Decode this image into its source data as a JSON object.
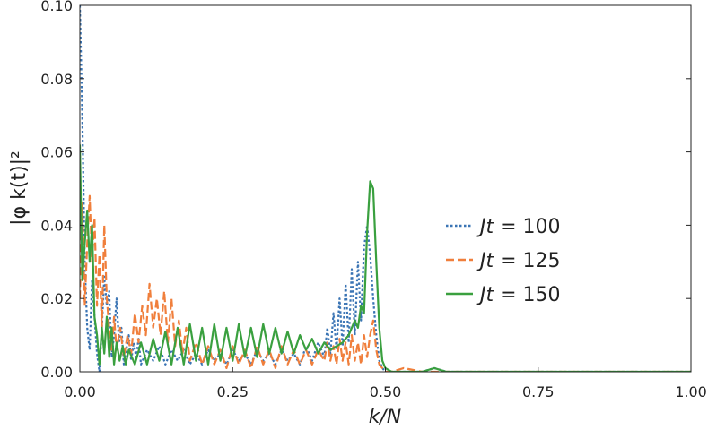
{
  "chart_data": {
    "type": "line",
    "xlabel": "k/N",
    "ylabel": "|φ k(t)|²",
    "xlim": [
      0,
      1
    ],
    "ylim": [
      0,
      0.1
    ],
    "xticks": [
      "0.00",
      "0.25",
      "0.50",
      "0.75",
      "1.00"
    ],
    "yticks": [
      "0.00",
      "0.02",
      "0.04",
      "0.06",
      "0.08",
      "0.10"
    ],
    "grid": false,
    "legend_position": "right",
    "series": [
      {
        "name": "Jt = 100",
        "color": "#3a74b4",
        "dash": "dotted",
        "x": [
          0.0,
          0.004,
          0.008,
          0.012,
          0.016,
          0.02,
          0.024,
          0.028,
          0.032,
          0.036,
          0.04,
          0.044,
          0.048,
          0.052,
          0.056,
          0.06,
          0.064,
          0.068,
          0.072,
          0.076,
          0.08,
          0.084,
          0.088,
          0.092,
          0.096,
          0.1,
          0.11,
          0.12,
          0.13,
          0.14,
          0.15,
          0.16,
          0.17,
          0.18,
          0.19,
          0.2,
          0.21,
          0.22,
          0.23,
          0.24,
          0.25,
          0.26,
          0.27,
          0.28,
          0.29,
          0.3,
          0.31,
          0.32,
          0.33,
          0.34,
          0.35,
          0.36,
          0.37,
          0.38,
          0.39,
          0.4,
          0.405,
          0.41,
          0.415,
          0.42,
          0.425,
          0.43,
          0.435,
          0.44,
          0.445,
          0.45,
          0.455,
          0.46,
          0.465,
          0.47,
          0.475,
          0.48,
          0.485,
          0.49,
          0.495,
          0.5,
          0.51,
          0.53,
          0.56,
          0.58,
          0.6,
          0.65,
          0.7,
          0.75,
          0.8,
          0.85,
          0.9,
          0.95,
          1.0
        ],
        "y": [
          0.1,
          0.07,
          0.03,
          0.012,
          0.006,
          0.025,
          0.015,
          0.005,
          0.0,
          0.012,
          0.026,
          0.018,
          0.022,
          0.004,
          0.01,
          0.02,
          0.008,
          0.012,
          0.002,
          0.006,
          0.01,
          0.003,
          0.008,
          0.004,
          0.009,
          0.002,
          0.006,
          0.003,
          0.007,
          0.002,
          0.006,
          0.003,
          0.006,
          0.002,
          0.005,
          0.002,
          0.006,
          0.003,
          0.005,
          0.002,
          0.006,
          0.003,
          0.005,
          0.002,
          0.006,
          0.003,
          0.005,
          0.002,
          0.006,
          0.003,
          0.005,
          0.002,
          0.007,
          0.003,
          0.008,
          0.004,
          0.012,
          0.005,
          0.016,
          0.006,
          0.02,
          0.007,
          0.024,
          0.008,
          0.028,
          0.01,
          0.03,
          0.014,
          0.034,
          0.04,
          0.032,
          0.02,
          0.01,
          0.003,
          0.001,
          0.0,
          0.0,
          0.0,
          0.0,
          0.001,
          0.0,
          0.0,
          0.0,
          0.0,
          0.0,
          0.0,
          0.0,
          0.0,
          0.0
        ]
      },
      {
        "name": "Jt = 125",
        "color": "#f07f3c",
        "dash": "dashed",
        "x": [
          0.0,
          0.004,
          0.008,
          0.012,
          0.016,
          0.02,
          0.024,
          0.028,
          0.032,
          0.036,
          0.04,
          0.044,
          0.048,
          0.052,
          0.056,
          0.06,
          0.066,
          0.072,
          0.078,
          0.084,
          0.09,
          0.096,
          0.102,
          0.108,
          0.114,
          0.12,
          0.126,
          0.132,
          0.138,
          0.144,
          0.15,
          0.156,
          0.162,
          0.168,
          0.174,
          0.18,
          0.19,
          0.2,
          0.21,
          0.22,
          0.23,
          0.24,
          0.25,
          0.26,
          0.27,
          0.28,
          0.29,
          0.3,
          0.31,
          0.32,
          0.33,
          0.34,
          0.35,
          0.36,
          0.37,
          0.38,
          0.39,
          0.4,
          0.405,
          0.41,
          0.415,
          0.42,
          0.425,
          0.43,
          0.435,
          0.44,
          0.445,
          0.45,
          0.455,
          0.46,
          0.465,
          0.47,
          0.475,
          0.48,
          0.485,
          0.49,
          0.495,
          0.5,
          0.51,
          0.53,
          0.56,
          0.58,
          0.6,
          0.65,
          0.7,
          0.75,
          0.8,
          0.85,
          0.9,
          0.95,
          1.0
        ],
        "y": [
          0.02,
          0.046,
          0.018,
          0.035,
          0.048,
          0.03,
          0.042,
          0.018,
          0.032,
          0.012,
          0.04,
          0.02,
          0.012,
          0.006,
          0.015,
          0.006,
          0.012,
          0.004,
          0.01,
          0.005,
          0.016,
          0.008,
          0.018,
          0.01,
          0.024,
          0.012,
          0.02,
          0.01,
          0.022,
          0.008,
          0.02,
          0.007,
          0.014,
          0.005,
          0.012,
          0.003,
          0.008,
          0.002,
          0.007,
          0.002,
          0.006,
          0.001,
          0.007,
          0.002,
          0.006,
          0.001,
          0.007,
          0.002,
          0.006,
          0.001,
          0.007,
          0.002,
          0.006,
          0.002,
          0.006,
          0.002,
          0.006,
          0.003,
          0.008,
          0.003,
          0.007,
          0.002,
          0.009,
          0.003,
          0.008,
          0.002,
          0.01,
          0.003,
          0.008,
          0.002,
          0.01,
          0.004,
          0.01,
          0.014,
          0.006,
          0.002,
          0.001,
          0.0,
          0.0,
          0.001,
          0.0,
          0.0,
          0.0,
          0.0,
          0.0,
          0.0,
          0.0,
          0.0,
          0.0,
          0.0,
          0.0
        ]
      },
      {
        "name": "Jt = 150",
        "color": "#3aa03f",
        "dash": "solid",
        "x": [
          0.0,
          0.004,
          0.008,
          0.012,
          0.016,
          0.02,
          0.024,
          0.028,
          0.032,
          0.036,
          0.04,
          0.044,
          0.048,
          0.052,
          0.056,
          0.06,
          0.065,
          0.07,
          0.075,
          0.08,
          0.09,
          0.1,
          0.11,
          0.12,
          0.13,
          0.14,
          0.15,
          0.16,
          0.17,
          0.18,
          0.19,
          0.2,
          0.21,
          0.22,
          0.23,
          0.24,
          0.25,
          0.26,
          0.27,
          0.28,
          0.29,
          0.3,
          0.31,
          0.32,
          0.33,
          0.34,
          0.35,
          0.36,
          0.37,
          0.38,
          0.39,
          0.4,
          0.41,
          0.42,
          0.43,
          0.44,
          0.45,
          0.455,
          0.46,
          0.465,
          0.47,
          0.475,
          0.48,
          0.485,
          0.49,
          0.495,
          0.5,
          0.51,
          0.53,
          0.56,
          0.58,
          0.6,
          0.65,
          0.7,
          0.75,
          0.8,
          0.85,
          0.9,
          0.95,
          1.0
        ],
        "y": [
          0.062,
          0.025,
          0.035,
          0.044,
          0.03,
          0.04,
          0.015,
          0.01,
          0.002,
          0.012,
          0.005,
          0.015,
          0.004,
          0.012,
          0.002,
          0.008,
          0.003,
          0.007,
          0.002,
          0.006,
          0.002,
          0.008,
          0.002,
          0.009,
          0.003,
          0.011,
          0.002,
          0.012,
          0.002,
          0.013,
          0.003,
          0.012,
          0.002,
          0.013,
          0.003,
          0.012,
          0.003,
          0.013,
          0.004,
          0.012,
          0.004,
          0.013,
          0.005,
          0.012,
          0.005,
          0.011,
          0.005,
          0.01,
          0.006,
          0.009,
          0.005,
          0.008,
          0.006,
          0.007,
          0.008,
          0.01,
          0.014,
          0.012,
          0.018,
          0.016,
          0.038,
          0.052,
          0.05,
          0.03,
          0.012,
          0.003,
          0.001,
          0.0,
          0.0,
          0.0,
          0.001,
          0.0,
          0.0,
          0.0,
          0.0,
          0.0,
          0.0,
          0.0,
          0.0,
          0.0
        ]
      }
    ]
  }
}
